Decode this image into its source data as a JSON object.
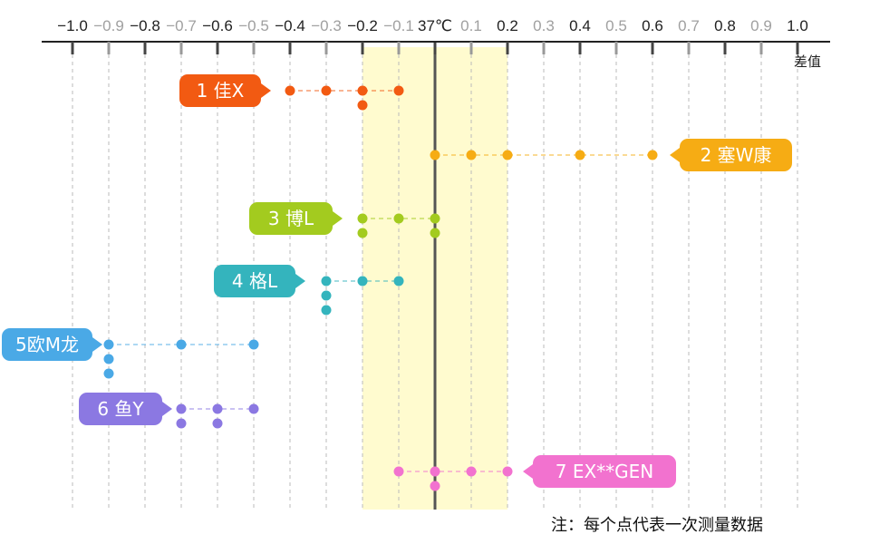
{
  "chart_data": {
    "type": "scatter",
    "xlabel": "差值",
    "xlim": [
      -1.0,
      1.0
    ],
    "reference_label": "37℃",
    "ticks": [
      {
        "value": -1.0,
        "label": "−1.0",
        "major": true
      },
      {
        "value": -0.9,
        "label": "−0.9",
        "major": false
      },
      {
        "value": -0.8,
        "label": "−0.8",
        "major": true
      },
      {
        "value": -0.7,
        "label": "−0.7",
        "major": false
      },
      {
        "value": -0.6,
        "label": "−0.6",
        "major": true
      },
      {
        "value": -0.5,
        "label": "−0.5",
        "major": false
      },
      {
        "value": -0.4,
        "label": "−0.4",
        "major": true
      },
      {
        "value": -0.3,
        "label": "−0.3",
        "major": false
      },
      {
        "value": -0.2,
        "label": "−0.2",
        "major": true
      },
      {
        "value": -0.1,
        "label": "−0.1",
        "major": false
      },
      {
        "value": 0.1,
        "label": "0.1",
        "major": false
      },
      {
        "value": 0.2,
        "label": "0.2",
        "major": true
      },
      {
        "value": 0.3,
        "label": "0.3",
        "major": false
      },
      {
        "value": 0.4,
        "label": "0.4",
        "major": true
      },
      {
        "value": 0.5,
        "label": "0.5",
        "major": false
      },
      {
        "value": 0.6,
        "label": "0.6",
        "major": true
      },
      {
        "value": 0.7,
        "label": "0.7",
        "major": false
      },
      {
        "value": 0.8,
        "label": "0.8",
        "major": true
      },
      {
        "value": 0.9,
        "label": "0.9",
        "major": false
      },
      {
        "value": 1.0,
        "label": "1.0",
        "major": true
      }
    ],
    "highlight_band": [
      -0.2,
      0.2
    ],
    "series": [
      {
        "name": "1 佳X",
        "color": "#f25a12",
        "label_side": "left",
        "values": [
          -0.4,
          -0.3,
          -0.2,
          -0.2,
          -0.1
        ]
      },
      {
        "name": "2 塞W康",
        "color": "#f6ac14",
        "label_side": "right",
        "values": [
          0.0,
          0.1,
          0.2,
          0.4,
          0.6
        ]
      },
      {
        "name": "3 博L",
        "color": "#a3cb1f",
        "label_side": "left",
        "values": [
          -0.2,
          -0.2,
          -0.1,
          0.0,
          0.0
        ]
      },
      {
        "name": "4 格L",
        "color": "#34b4bd",
        "label_side": "left",
        "values": [
          -0.3,
          -0.3,
          -0.3,
          -0.2,
          -0.1
        ]
      },
      {
        "name": "5欧M龙",
        "color": "#4aa9e6",
        "label_side": "left",
        "values": [
          -0.9,
          -0.9,
          -0.9,
          -0.7,
          -0.5
        ]
      },
      {
        "name": "6 鱼Y",
        "color": "#8b78e2",
        "label_side": "left",
        "values": [
          -0.7,
          -0.7,
          -0.6,
          -0.6,
          -0.5
        ]
      },
      {
        "name": "7 EX**GEN",
        "color": "#f272cf",
        "label_side": "right",
        "values": [
          -0.1,
          0.0,
          0.0,
          0.1,
          0.2
        ]
      }
    ],
    "note": "注：每个点代表一次测量数据"
  },
  "colors": {
    "axis": "#222222",
    "gridline": "#bbbbbb",
    "reference_line": "#555555",
    "band": "#fffbcf"
  }
}
